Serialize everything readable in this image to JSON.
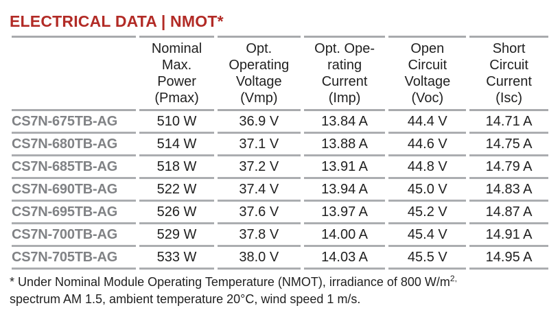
{
  "title": "ELECTRICAL DATA | NMOT*",
  "colors": {
    "title_red": "#b22b26",
    "model_gray": "#808285",
    "separator_gray": "#a8aaad",
    "body_text": "#1f1f1f"
  },
  "table": {
    "columns": [
      {
        "id": "model",
        "lines": [
          "",
          "",
          "",
          ""
        ]
      },
      {
        "id": "pmax",
        "lines": [
          "Nominal",
          "Max.",
          "Power",
          "(Pmax)"
        ]
      },
      {
        "id": "vmp",
        "lines": [
          "Opt.",
          "Operating",
          "Voltage",
          "(Vmp)"
        ]
      },
      {
        "id": "imp",
        "lines": [
          "Opt. Ope-",
          "rating",
          "Current",
          "(Imp)"
        ]
      },
      {
        "id": "voc",
        "lines": [
          "Open",
          "Circuit",
          "Voltage",
          "(Voc)"
        ]
      },
      {
        "id": "isc",
        "lines": [
          "Short",
          "Circuit",
          "Current",
          "(Isc)"
        ]
      }
    ],
    "rows": [
      {
        "model": "CS7N-675TB-AG",
        "pmax": "510 W",
        "vmp": "36.9 V",
        "imp": "13.84 A",
        "voc": "44.4 V",
        "isc": "14.71 A"
      },
      {
        "model": "CS7N-680TB-AG",
        "pmax": "514 W",
        "vmp": "37.1 V",
        "imp": "13.88 A",
        "voc": "44.6 V",
        "isc": "14.75 A"
      },
      {
        "model": "CS7N-685TB-AG",
        "pmax": "518 W",
        "vmp": "37.2 V",
        "imp": "13.91 A",
        "voc": "44.8 V",
        "isc": "14.79 A"
      },
      {
        "model": "CS7N-690TB-AG",
        "pmax": "522 W",
        "vmp": "37.4 V",
        "imp": "13.94 A",
        "voc": "45.0 V",
        "isc": "14.83 A"
      },
      {
        "model": "CS7N-695TB-AG",
        "pmax": "526 W",
        "vmp": "37.6 V",
        "imp": "13.97 A",
        "voc": "45.2 V",
        "isc": "14.87 A"
      },
      {
        "model": "CS7N-700TB-AG",
        "pmax": "529 W",
        "vmp": "37.8 V",
        "imp": "14.00 A",
        "voc": "45.4 V",
        "isc": "14.91 A"
      },
      {
        "model": "CS7N-705TB-AG",
        "pmax": "533 W",
        "vmp": "38.0 V",
        "imp": "14.03 A",
        "voc": "45.5 V",
        "isc": "14.95 A"
      }
    ]
  },
  "footnote": {
    "part1": "* Under Nominal Module Operating Temperature (NMOT), irradiance of 800 W/m",
    "superscript": "2,",
    "part2": "spectrum AM 1.5, ambient temperature 20°C, wind speed 1 m/s."
  }
}
